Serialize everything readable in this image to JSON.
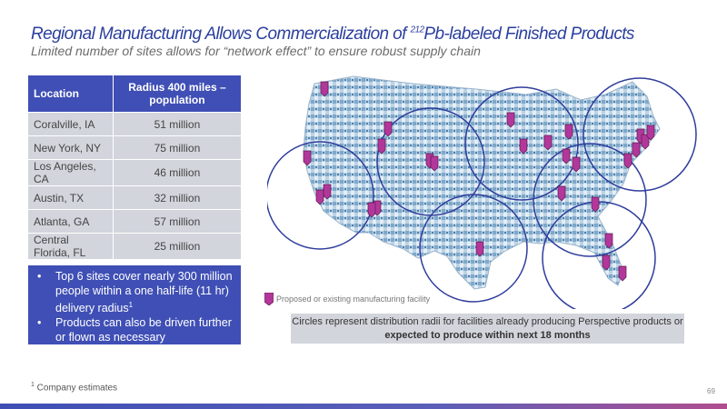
{
  "title": {
    "prefix": "Regional Manufacturing Allows Commercialization of ",
    "superscript": "212",
    "suffix": "Pb-labeled Finished Products"
  },
  "subtitle": "Limited number of sites allows for “network effect” to ensure robust supply chain",
  "table": {
    "headers": [
      "Location",
      "Radius 400 miles – population"
    ],
    "rows": [
      [
        "Coralville, IA",
        "51 million"
      ],
      [
        "New York, NY",
        "75 million"
      ],
      [
        "Los Angeles, CA",
        "46 million"
      ],
      [
        "Austin, TX",
        "32 million"
      ],
      [
        "Atlanta, GA",
        "57 million"
      ],
      [
        "Central Florida, FL",
        "25 million"
      ]
    ]
  },
  "callout": {
    "bullet1": "Top 6 sites cover nearly 300 million people within a one half-life (11 hr) delivery radius",
    "bullet1_sup": "1",
    "bullet2": "Products can also be driven further or flown as necessary"
  },
  "legend_label": "Proposed or existing manufacturing facility",
  "note": {
    "text1": "Circles represent distribution radii for facilities already producing Perspective products or ",
    "bold": "expected to produce within next 18 months"
  },
  "footnote": {
    "sup": "1",
    "text": " Company estimates"
  },
  "page_number": "69",
  "colors": {
    "title": "#2b3f9e",
    "table_header": "#3f4fb5",
    "table_cell": "#d2d5dc",
    "marker": "#b3379b",
    "circle": "#2f3d9c",
    "map_fill": "#7fa8c9"
  },
  "icons": {
    "marker": "map-pin-icon"
  }
}
